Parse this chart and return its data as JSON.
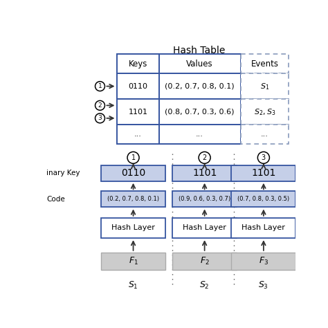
{
  "title": "Hash Table",
  "table_header": [
    "Keys",
    "Values",
    "Events"
  ],
  "table_rows": [
    [
      "0110",
      "(0.2, 0.7, 0.8, 0.1)",
      "$S_1$"
    ],
    [
      "1101",
      "(0.8, 0.7, 0.3, 0.6)",
      "$S_2, S_3$"
    ],
    [
      "...",
      "...",
      "..."
    ]
  ],
  "bottom_columns": [
    {
      "binary_key": "0110",
      "code": "(0.2, 0.7, 0.8, 0.1)",
      "circle": "1"
    },
    {
      "binary_key": "1101",
      "code": "(0.9, 0.6, 0.3, 0.7)",
      "circle": "2"
    },
    {
      "binary_key": "1101",
      "code": "(0.7, 0.8, 0.3, 0.5)",
      "circle": "3"
    }
  ],
  "box_blue_fill": "#c5cfe8",
  "box_blue_edge": "#3655a0",
  "hash_layer_fill": "#ffffff",
  "hash_layer_edge": "#3655a0",
  "f_box_fill": "#cccccc",
  "f_box_edge": "#aaaaaa",
  "table_solid_color": "#3655a0",
  "table_dashed_color": "#8899bb",
  "background": "#ffffff"
}
